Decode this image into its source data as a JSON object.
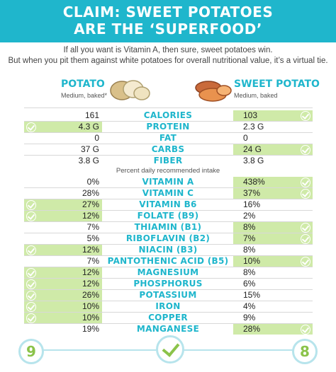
{
  "header": {
    "line1": "CLAIM: SWEET POTATOES",
    "line2": "ARE THE ‘SUPERFOOD’"
  },
  "intro": {
    "line1": "If all you want is Vitamin A, then sure, sweet potatoes win.",
    "line2": "But when you pit them against white potatoes for overall nutritional value, it’s a virtual tie."
  },
  "potato": {
    "title": "POTATO",
    "subtitle": "Medium, baked*",
    "score": "9"
  },
  "sweet_potato": {
    "title": "SWEET POTATO",
    "subtitle": "Medium, baked",
    "score": "8"
  },
  "pdv_label": "Percent daily recommended intake",
  "colors": {
    "accent": "#1fb6cc",
    "win": "#cfeaa8",
    "check": "#8bc34a"
  },
  "rows": [
    {
      "name": "CALORIES",
      "potato": "161",
      "sweet": "103",
      "winner": "sweet"
    },
    {
      "name": "PROTEIN",
      "potato": "4.3 G",
      "sweet": "2.3 G",
      "winner": "potato"
    },
    {
      "name": "FAT",
      "potato": "0",
      "sweet": "0",
      "winner": "none"
    },
    {
      "name": "CARBS",
      "potato": "37 G",
      "sweet": "24 G",
      "winner": "sweet"
    },
    {
      "name": "FIBER",
      "potato": "3.8 G",
      "sweet": "3.8 G",
      "winner": "none"
    },
    {
      "name": "VITAMIN A",
      "potato": "0%",
      "sweet": "438%",
      "winner": "sweet"
    },
    {
      "name": "VITAMIN C",
      "potato": "28%",
      "sweet": "37%",
      "winner": "sweet"
    },
    {
      "name": "VITAMIN B6",
      "potato": "27%",
      "sweet": "16%",
      "winner": "potato"
    },
    {
      "name": "FOLATE (B9)",
      "potato": "12%",
      "sweet": "2%",
      "winner": "potato"
    },
    {
      "name": "THIAMIN (B1)",
      "potato": "7%",
      "sweet": "8%",
      "winner": "sweet"
    },
    {
      "name": "RIBOFLAVIN (B2)",
      "potato": "5%",
      "sweet": "7%",
      "winner": "sweet"
    },
    {
      "name": "NIACIN (B3)",
      "potato": "12%",
      "sweet": "8%",
      "winner": "potato"
    },
    {
      "name": "PANTOTHENIC ACID (B5)",
      "potato": "7%",
      "sweet": "10%",
      "winner": "sweet"
    },
    {
      "name": "MAGNESIUM",
      "potato": "12%",
      "sweet": "8%",
      "winner": "potato"
    },
    {
      "name": "PHOSPHORUS",
      "potato": "12%",
      "sweet": "6%",
      "winner": "potato"
    },
    {
      "name": "POTASSIUM",
      "potato": "26%",
      "sweet": "15%",
      "winner": "potato"
    },
    {
      "name": "IRON",
      "potato": "10%",
      "sweet": "4%",
      "winner": "potato"
    },
    {
      "name": "COPPER",
      "potato": "10%",
      "sweet": "9%",
      "winner": "potato"
    },
    {
      "name": "MANGANESE",
      "potato": "19%",
      "sweet": "28%",
      "winner": "sweet"
    }
  ]
}
